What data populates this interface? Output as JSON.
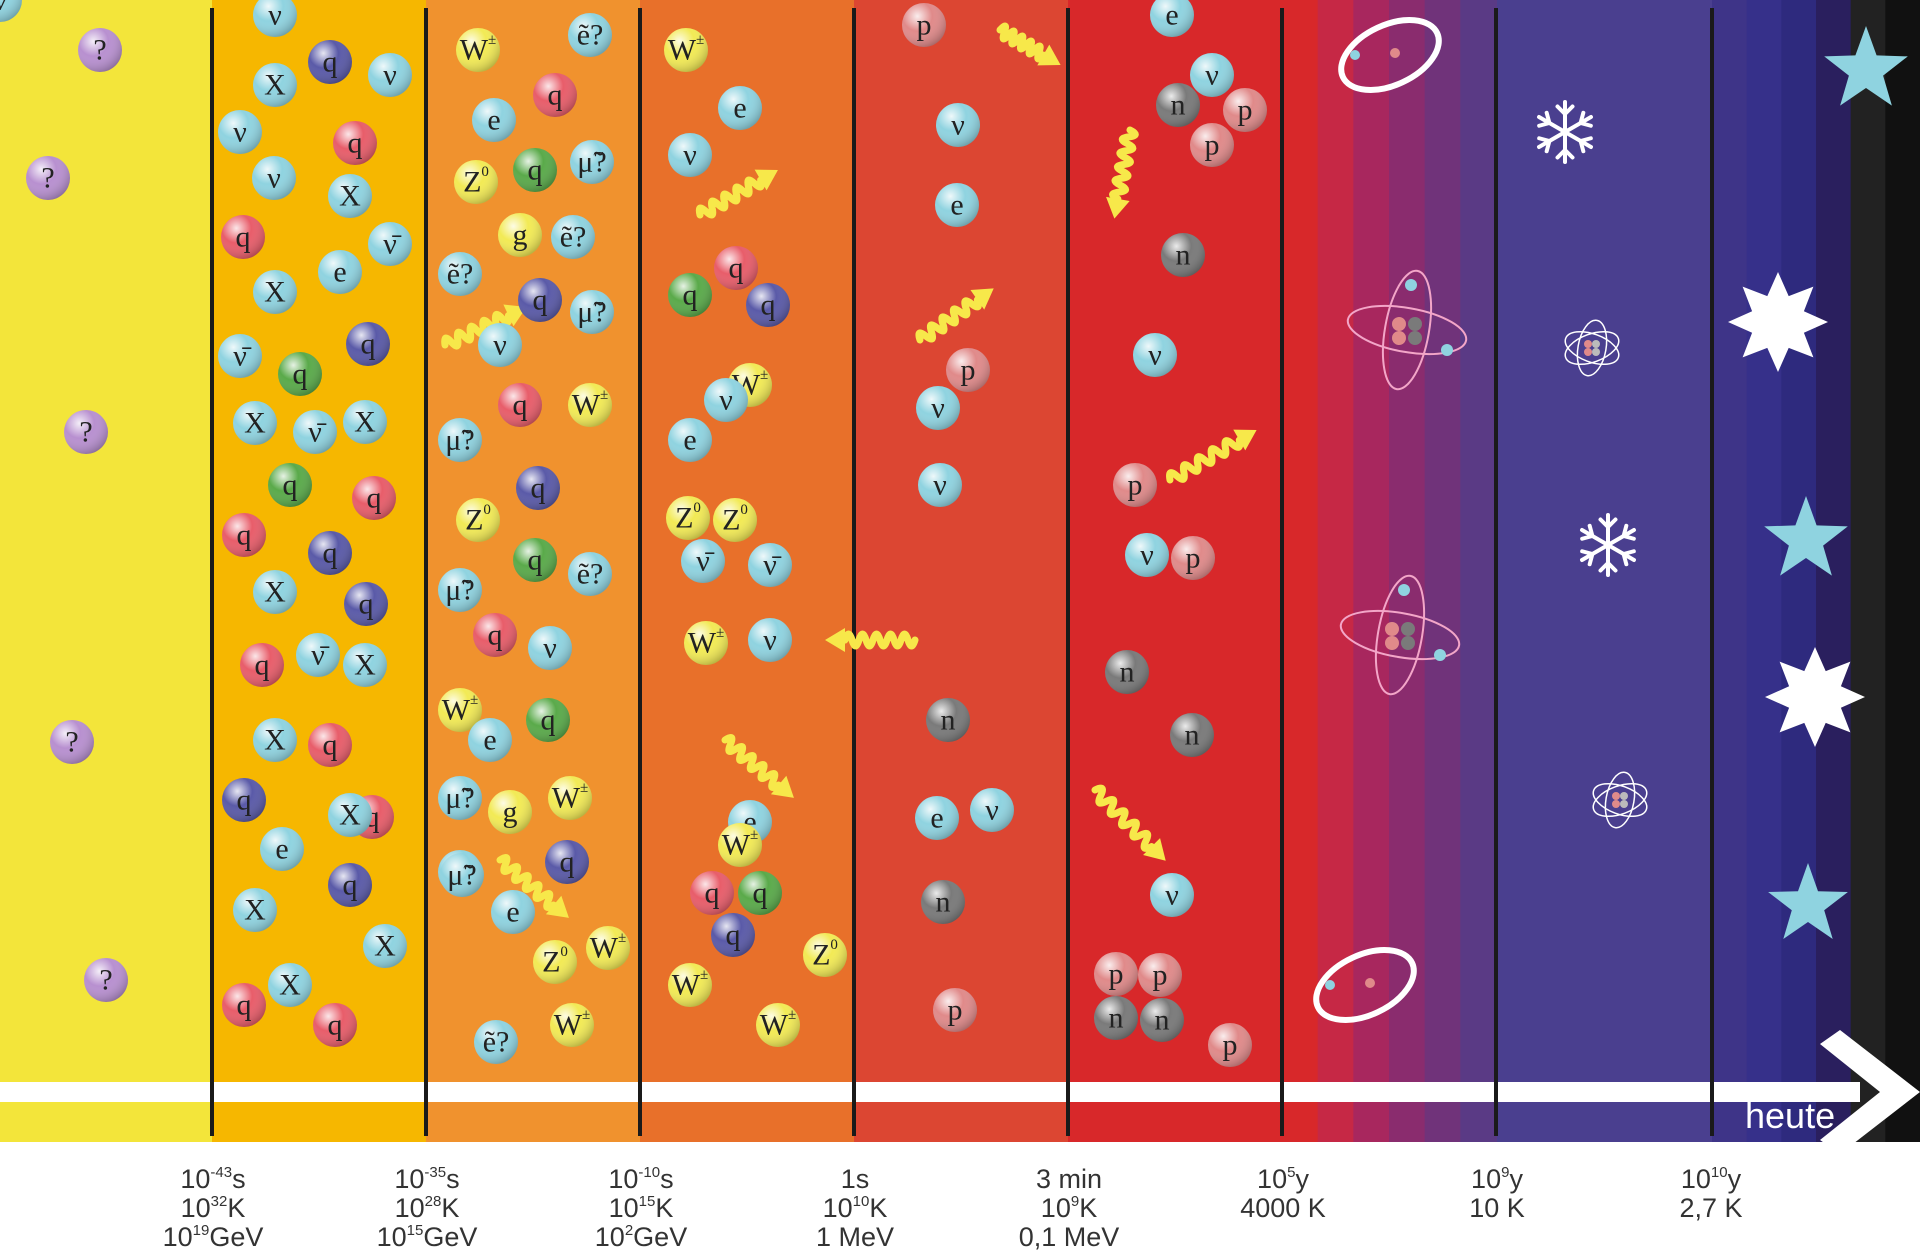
{
  "arrow_label": "heute",
  "bands": [
    {
      "name": "era-0",
      "color": "#f3e53a"
    },
    {
      "name": "era-1",
      "color": "#f6b700"
    },
    {
      "name": "era-2",
      "color": "#f0922e"
    },
    {
      "name": "era-3",
      "color": "#e8702a"
    },
    {
      "name": "era-4",
      "color": "#dc4632"
    },
    {
      "name": "era-5",
      "color": "#d8282a"
    },
    {
      "name": "era-6",
      "color": "#c01f4a"
    },
    {
      "name": "era-7",
      "color": "#4a3f8f"
    },
    {
      "name": "era-8",
      "color": "#3e3488"
    }
  ],
  "gradient_colors": [
    "#d8282a",
    "#c62845",
    "#a8275e",
    "#8a2c6e",
    "#70337a",
    "#5a3a85"
  ],
  "tail_colors": [
    "#3e3488",
    "#36308a",
    "#2e2a7e",
    "#2a1f5e",
    "#222222",
    "#111111"
  ],
  "timeline": [
    {
      "lines": [
        "10-43s",
        "1032K",
        "1019GeV"
      ]
    },
    {
      "lines": [
        "10-35s",
        "1028K",
        "1015GeV"
      ]
    },
    {
      "lines": [
        "10-10s",
        "1015K",
        "102GeV"
      ]
    },
    {
      "lines": [
        "1s",
        "1010K",
        "1 MeV"
      ]
    },
    {
      "lines": [
        "3 min",
        "109K",
        "0,1 MeV"
      ]
    },
    {
      "lines": [
        "105y",
        "4000 K"
      ]
    },
    {
      "lines": [
        "109y",
        "10 K"
      ]
    },
    {
      "lines": [
        "1010y",
        "2,7 K"
      ]
    }
  ],
  "particle_colors": {
    "q_purple": "#5a5aa8",
    "q_red": "#e85d6a",
    "q_green": "#5aaa4a",
    "X": "#8fd3e0",
    "nu": "#8fd3e0",
    "e": "#8fd3e0",
    "W": "#f2ea55",
    "Z": "#f2ea55",
    "g": "#f2ea55",
    "sparticle": "#8fd3e0",
    "p": "#e08a8a",
    "n": "#7a7a7a",
    "unknown": "#b890d0"
  },
  "particles": [
    {
      "t": "?",
      "c": "unknown"
    },
    {
      "t": "?",
      "c": "unknown"
    },
    {
      "t": "?",
      "c": "unknown"
    },
    {
      "t": "?",
      "c": "unknown"
    },
    {
      "t": "?",
      "c": "unknown"
    },
    {
      "t": "ν",
      "c": "nu"
    },
    {
      "t": "q",
      "c": "q_purple"
    },
    {
      "t": "ν",
      "c": "nu"
    },
    {
      "t": "X",
      "c": "X"
    },
    {
      "t": "ν",
      "c": "nu"
    },
    {
      "t": "q",
      "c": "q_red"
    },
    {
      "t": "ν",
      "c": "nu"
    },
    {
      "t": "X",
      "c": "X"
    },
    {
      "t": "q",
      "c": "q_red"
    },
    {
      "t": "ν̄",
      "c": "nu"
    },
    {
      "t": "X",
      "c": "X"
    },
    {
      "t": "e",
      "c": "e"
    },
    {
      "t": "ν̄",
      "c": "nu"
    },
    {
      "t": "q",
      "c": "q_green"
    },
    {
      "t": "q",
      "c": "q_purple"
    },
    {
      "t": "X",
      "c": "X"
    },
    {
      "t": "ν̄",
      "c": "nu"
    },
    {
      "t": "X",
      "c": "X"
    },
    {
      "t": "q",
      "c": "q_green"
    },
    {
      "t": "q",
      "c": "q_red"
    },
    {
      "t": "q",
      "c": "q_red"
    },
    {
      "t": "q",
      "c": "q_purple"
    },
    {
      "t": "X",
      "c": "X"
    },
    {
      "t": "q",
      "c": "q_purple"
    },
    {
      "t": "q",
      "c": "q_red"
    },
    {
      "t": "ν̄",
      "c": "nu"
    },
    {
      "t": "X",
      "c": "X"
    },
    {
      "t": "X",
      "c": "X"
    },
    {
      "t": "q",
      "c": "q_red"
    },
    {
      "t": "q",
      "c": "q_purple"
    },
    {
      "t": "q",
      "c": "q_red"
    },
    {
      "t": "X",
      "c": "X"
    },
    {
      "t": "e",
      "c": "e"
    },
    {
      "t": "q",
      "c": "q_purple"
    },
    {
      "t": "X",
      "c": "X"
    },
    {
      "t": "X",
      "c": "X"
    },
    {
      "t": "q",
      "c": "q_red"
    },
    {
      "t": "X",
      "c": "X"
    },
    {
      "t": "q",
      "c": "q_red"
    },
    {
      "t": "W±",
      "c": "W"
    },
    {
      "t": "ẽ?",
      "c": "sparticle"
    },
    {
      "t": "e",
      "c": "e"
    },
    {
      "t": "q",
      "c": "q_red"
    },
    {
      "t": "Z0",
      "c": "Z"
    },
    {
      "t": "q",
      "c": "q_green"
    },
    {
      "t": "μ̃?",
      "c": "sparticle"
    },
    {
      "t": "g",
      "c": "g"
    },
    {
      "t": "ẽ?",
      "c": "sparticle"
    },
    {
      "t": "ẽ?",
      "c": "sparticle"
    },
    {
      "t": "q",
      "c": "q_purple"
    },
    {
      "t": "μ̃?",
      "c": "sparticle"
    },
    {
      "t": "ν",
      "c": "nu"
    },
    {
      "t": "q",
      "c": "q_red"
    },
    {
      "t": "W±",
      "c": "W"
    },
    {
      "t": "μ̃?",
      "c": "sparticle"
    },
    {
      "t": "q",
      "c": "q_purple"
    },
    {
      "t": "Z0",
      "c": "Z"
    },
    {
      "t": "q",
      "c": "q_green"
    },
    {
      "t": "ẽ?",
      "c": "sparticle"
    },
    {
      "t": "μ̃?",
      "c": "sparticle"
    },
    {
      "t": "q",
      "c": "q_red"
    },
    {
      "t": "ν",
      "c": "nu"
    },
    {
      "t": "W±",
      "c": "W"
    },
    {
      "t": "q",
      "c": "q_green"
    },
    {
      "t": "e",
      "c": "e"
    },
    {
      "t": "μ̃?",
      "c": "sparticle"
    },
    {
      "t": "g",
      "c": "g"
    },
    {
      "t": "W±",
      "c": "W"
    },
    {
      "t": "ẽ?",
      "c": "sparticle"
    },
    {
      "t": "q",
      "c": "q_purple"
    },
    {
      "t": "e",
      "c": "e"
    },
    {
      "t": "μ̃?",
      "c": "sparticle"
    },
    {
      "t": "Z0",
      "c": "Z"
    },
    {
      "t": "W±",
      "c": "W"
    },
    {
      "t": "ẽ?",
      "c": "sparticle"
    },
    {
      "t": "W±",
      "c": "W"
    },
    {
      "t": "W±",
      "c": "W"
    },
    {
      "t": "e",
      "c": "e"
    },
    {
      "t": "ν",
      "c": "nu"
    },
    {
      "t": "q",
      "c": "q_red"
    },
    {
      "t": "q",
      "c": "q_green"
    },
    {
      "t": "Z0",
      "c": "Z"
    },
    {
      "t": "q",
      "c": "q_purple"
    },
    {
      "t": "e",
      "c": "e"
    },
    {
      "t": "W±",
      "c": "W"
    },
    {
      "t": "ν",
      "c": "nu"
    },
    {
      "t": "Z0",
      "c": "Z"
    },
    {
      "t": "ν̄",
      "c": "nu"
    },
    {
      "t": "ν̄",
      "c": "nu"
    },
    {
      "t": "W±",
      "c": "W"
    },
    {
      "t": "ν",
      "c": "nu"
    },
    {
      "t": "e",
      "c": "e"
    },
    {
      "t": "W±",
      "c": "W"
    },
    {
      "t": "q",
      "c": "q_red"
    },
    {
      "t": "q",
      "c": "q_green"
    },
    {
      "t": "q",
      "c": "q_purple"
    },
    {
      "t": "Z0",
      "c": "Z"
    },
    {
      "t": "W±",
      "c": "W"
    },
    {
      "t": "W±",
      "c": "W"
    },
    {
      "t": "p",
      "c": "p"
    },
    {
      "t": "ν",
      "c": "nu"
    },
    {
      "t": "e",
      "c": "e"
    },
    {
      "t": "p",
      "c": "p"
    },
    {
      "t": "ν",
      "c": "nu"
    },
    {
      "t": "ν",
      "c": "nu"
    },
    {
      "t": "n",
      "c": "n"
    },
    {
      "t": "e",
      "c": "e"
    },
    {
      "t": "n",
      "c": "n"
    },
    {
      "t": "ν",
      "c": "nu"
    },
    {
      "t": "p",
      "c": "p"
    },
    {
      "t": "e",
      "c": "e"
    },
    {
      "t": "ν",
      "c": "nu"
    },
    {
      "t": "n",
      "c": "n"
    },
    {
      "t": "p",
      "c": "p"
    },
    {
      "t": "p",
      "c": "p"
    },
    {
      "t": "n",
      "c": "n"
    },
    {
      "t": "ν",
      "c": "nu"
    },
    {
      "t": "p",
      "c": "p"
    },
    {
      "t": "ν",
      "c": "nu"
    },
    {
      "t": "p",
      "c": "p"
    },
    {
      "t": "n",
      "c": "n"
    },
    {
      "t": "n",
      "c": "n"
    },
    {
      "t": "ν",
      "c": "nu"
    },
    {
      "t": "p",
      "c": "p"
    },
    {
      "t": "p",
      "c": "p"
    },
    {
      "t": "n",
      "c": "n"
    },
    {
      "t": "n",
      "c": "n"
    },
    {
      "t": "p",
      "c": "p"
    },
    {
      "t": "ν",
      "c": "nu"
    }
  ]
}
